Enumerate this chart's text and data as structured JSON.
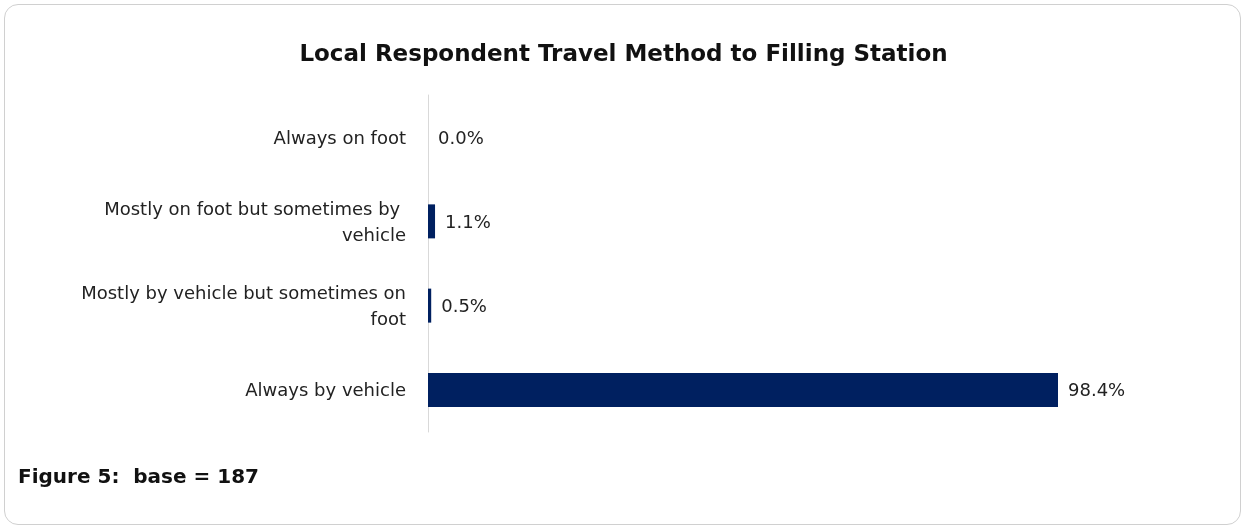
{
  "chart_data": {
    "type": "bar",
    "orientation": "horizontal",
    "title": "Local Respondent Travel Method to Filling Station",
    "categories": [
      "Always on foot",
      "Mostly on foot but sometimes by vehicle",
      "Mostly by vehicle but sometimes on foot",
      "Always by vehicle"
    ],
    "values": [
      0.0,
      1.1,
      0.5,
      98.4
    ],
    "color": "#002060",
    "value_labels": [
      "0.0%",
      "1.1%",
      "0.5%",
      "98.4%"
    ],
    "annotations": [
      "Figure 5:  base = 187"
    ]
  }
}
